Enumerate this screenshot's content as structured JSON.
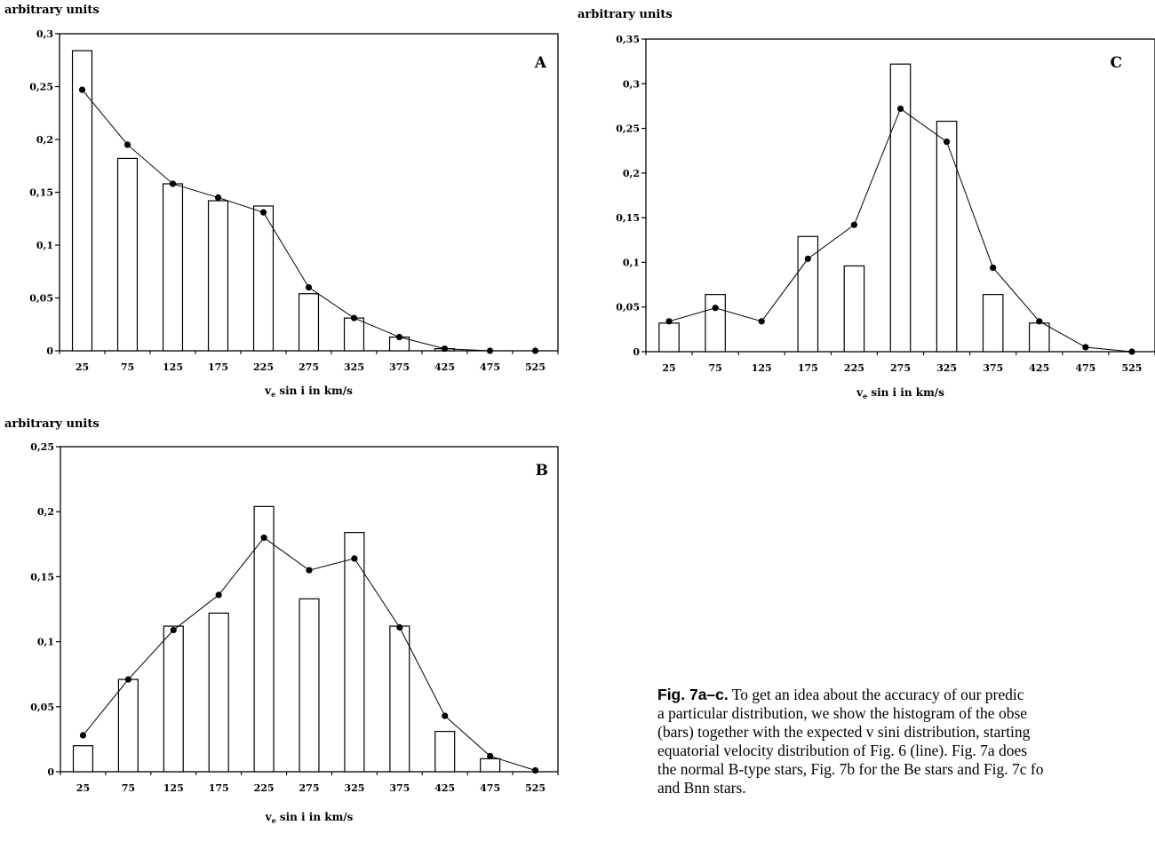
{
  "page": {
    "caption_label": "Fig. 7a–c.",
    "caption_lines": [
      " To get an idea about the accuracy of our predic",
      "a particular distribution, we show the histogram of the obse",
      "(bars) together with the expected v sini distribution, starting",
      "equatorial velocity distribution of Fig. 6 (line). Fig. 7a does",
      "the normal B-type stars, Fig. 7b for the Be stars and Fig. 7c fo",
      "and Bnn stars."
    ]
  },
  "chart_data": [
    {
      "id": "A",
      "type": "bar",
      "panel_label": "A",
      "ylabel": "arbitrary units",
      "xlabel_pre": "v",
      "xlabel_sub": "e",
      "xlabel_post": " sin i in km/s",
      "categories": [
        "25",
        "75",
        "125",
        "175",
        "225",
        "275",
        "325",
        "375",
        "425",
        "475",
        "525"
      ],
      "ylim": [
        0,
        0.3
      ],
      "yticks": [
        0,
        0.05,
        0.1,
        0.15,
        0.2,
        0.25,
        0.3
      ],
      "ytick_labels": [
        "0",
        "0,05",
        "0,1",
        "0,15",
        "0,2",
        "0,25",
        "0,3"
      ],
      "series": [
        {
          "kind": "bar",
          "values": [
            0.284,
            0.182,
            0.158,
            0.142,
            0.137,
            0.054,
            0.031,
            0.013,
            0.002,
            0.0,
            0.0
          ]
        },
        {
          "kind": "line",
          "values": [
            0.247,
            0.195,
            0.158,
            0.145,
            0.131,
            0.06,
            0.031,
            0.013,
            0.002,
            0.0,
            0.0
          ]
        }
      ]
    },
    {
      "id": "C",
      "type": "bar",
      "panel_label": "C",
      "ylabel": "arbitrary units",
      "xlabel_pre": "v",
      "xlabel_sub": "e",
      "xlabel_post": " sin i in km/s",
      "categories": [
        "25",
        "75",
        "125",
        "175",
        "225",
        "275",
        "325",
        "375",
        "425",
        "475",
        "525"
      ],
      "ylim": [
        0,
        0.35
      ],
      "yticks": [
        0,
        0.05,
        0.1,
        0.15,
        0.2,
        0.25,
        0.3,
        0.35
      ],
      "ytick_labels": [
        "0",
        "0,05",
        "0,1",
        "0,15",
        "0,2",
        "0,25",
        "0,3",
        "0,35"
      ],
      "series": [
        {
          "kind": "bar",
          "values": [
            0.032,
            0.064,
            0.0,
            0.129,
            0.096,
            0.322,
            0.258,
            0.064,
            0.032,
            0.0,
            0.0
          ]
        },
        {
          "kind": "line",
          "values": [
            0.034,
            0.049,
            0.034,
            0.104,
            0.142,
            0.272,
            0.235,
            0.094,
            0.034,
            0.005,
            0.0
          ]
        }
      ]
    },
    {
      "id": "B",
      "type": "bar",
      "panel_label": "B",
      "ylabel": "arbitrary units",
      "xlabel_pre": "v",
      "xlabel_sub": "e",
      "xlabel_post": " sin i in km/s",
      "categories": [
        "25",
        "75",
        "125",
        "175",
        "225",
        "275",
        "325",
        "375",
        "425",
        "475",
        "525"
      ],
      "ylim": [
        0,
        0.25
      ],
      "yticks": [
        0,
        0.05,
        0.1,
        0.15,
        0.2,
        0.25
      ],
      "ytick_labels": [
        "0",
        "0,05",
        "0,1",
        "0,15",
        "0,2",
        "0,25"
      ],
      "series": [
        {
          "kind": "bar",
          "values": [
            0.02,
            0.071,
            0.112,
            0.122,
            0.204,
            0.133,
            0.184,
            0.112,
            0.031,
            0.01,
            0.0
          ]
        },
        {
          "kind": "line",
          "values": [
            0.028,
            0.071,
            0.109,
            0.136,
            0.18,
            0.155,
            0.164,
            0.111,
            0.043,
            0.012,
            0.001
          ]
        }
      ]
    }
  ]
}
